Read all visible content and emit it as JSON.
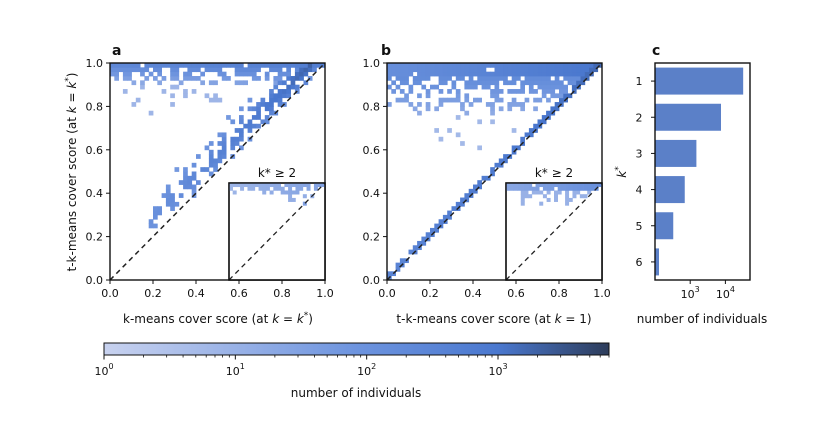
{
  "colors": {
    "low": "#c8d2ef",
    "mid": "#4d7ed4",
    "high": "#2d3c5a",
    "bar": "#5b80c8",
    "frame": "#111111",
    "diag": "#222222"
  },
  "panels": {
    "a": {
      "label": "a",
      "xlabel": "k-means cover score (at k = k*)",
      "ylabel": "t-k-means cover score (at k = k*)",
      "inset_label": "k* ≥ 2"
    },
    "b": {
      "label": "b",
      "xlabel": "t-k-means cover score (at k = 1)",
      "inset_label": "k* ≥ 2"
    },
    "c": {
      "label": "c",
      "xlabel": "number of individuals",
      "ylabel": "k*"
    }
  },
  "chart_data": [
    {
      "id": "a",
      "type": "heatmap",
      "title": "",
      "xlabel": "k-means cover score (at k = k*)",
      "ylabel": "t-k-means cover score (at k = k*)",
      "xlim": [
        0,
        1
      ],
      "ylim": [
        0,
        1
      ],
      "xticks": [
        "0.0",
        "0.2",
        "0.4",
        "0.6",
        "0.8",
        "1.0"
      ],
      "yticks": [
        "0.0",
        "0.2",
        "0.4",
        "0.6",
        "0.8",
        "1.0"
      ],
      "reference_line": "y = x (dashed)",
      "description_of_density": "Dense band just above the diagonal from ~0.3 to 1.0 plus a horizontal band near y = 0.95-1.0 for x from 0 to 1",
      "inset": {
        "label": "k* ≥ 2",
        "xlim": [
          0,
          1
        ],
        "ylim": [
          0,
          1
        ]
      }
    },
    {
      "id": "b",
      "type": "heatmap",
      "xlabel": "t-k-means cover score (at k = 1)",
      "xlim": [
        0,
        1
      ],
      "ylim": [
        0,
        1
      ],
      "xticks": [
        "0.0",
        "0.2",
        "0.4",
        "0.6",
        "0.8",
        "1.0"
      ],
      "yticks": [
        "0.0",
        "0.2",
        "0.4",
        "0.6",
        "0.8",
        "1.0"
      ],
      "reference_line": "y = x (dashed)",
      "description_of_density": "Dense band along the top (y near 1.0) and along the diagonal, sparse scatter down to y ~ 0.6",
      "inset": {
        "label": "k* ≥ 2",
        "xlim": [
          0,
          1
        ],
        "ylim": [
          0,
          1
        ]
      }
    },
    {
      "id": "c",
      "type": "bar",
      "orientation": "horizontal",
      "xscale": "log",
      "xlabel": "number of individuals",
      "ylabel": "k*",
      "categories": [
        "1",
        "2",
        "3",
        "4",
        "5",
        "6"
      ],
      "values": [
        32000,
        7500,
        1500,
        700,
        330,
        130
      ],
      "xticks": [
        {
          "value": 1000,
          "base": "10",
          "exp": "3"
        },
        {
          "value": 10000,
          "base": "10",
          "exp": "4"
        }
      ],
      "xlim": [
        100,
        50000
      ]
    },
    {
      "id": "colorbar",
      "type": "colorbar",
      "scale": "log",
      "label": "number of individuals",
      "range": [
        1,
        7000
      ],
      "ticks": [
        {
          "value": 1,
          "base": "10",
          "exp": "0"
        },
        {
          "value": 10,
          "base": "10",
          "exp": "1"
        },
        {
          "value": 100,
          "base": "10",
          "exp": "2"
        },
        {
          "value": 1000,
          "base": "10",
          "exp": "3"
        }
      ]
    }
  ]
}
